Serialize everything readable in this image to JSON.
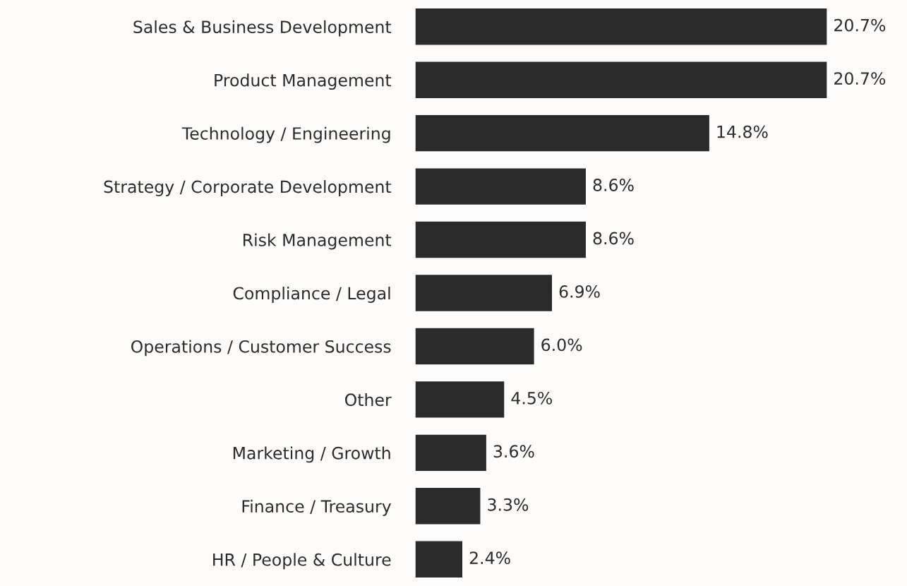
{
  "chart_data": {
    "type": "bar",
    "orientation": "horizontal",
    "categories": [
      "Sales & Business Development",
      "Product Management",
      "Technology / Engineering",
      "Strategy / Corporate Development",
      "Risk Management",
      "Compliance / Legal",
      "Operations / Customer Success",
      "Other",
      "Marketing / Growth",
      "Finance / Treasury",
      "HR / People & Culture"
    ],
    "values": [
      20.7,
      20.7,
      14.8,
      8.6,
      8.6,
      6.9,
      6.0,
      4.5,
      3.6,
      3.3,
      2.4
    ],
    "value_labels": [
      "20.7%",
      "20.7%",
      "14.8%",
      "8.6%",
      "8.6%",
      "6.9%",
      "6.0%",
      "4.5%",
      "3.6%",
      "3.3%",
      "2.4%"
    ],
    "color": "#2b2b2b",
    "grid": false,
    "legend": false
  }
}
